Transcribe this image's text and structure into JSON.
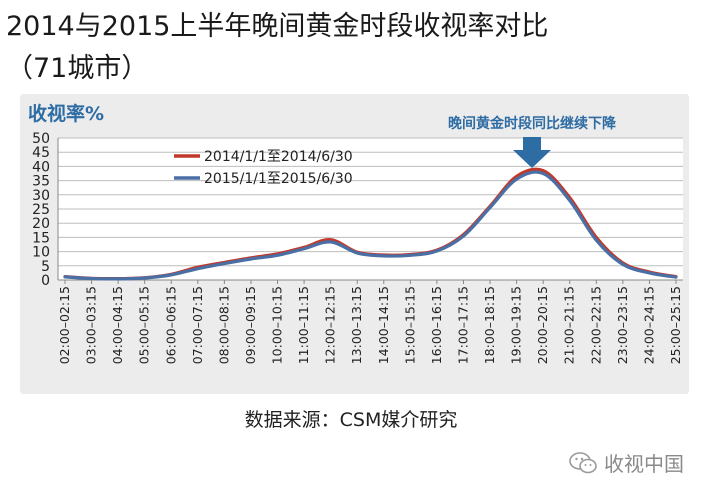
{
  "page": {
    "title_line1": "2014与2015上半年晚间黄金时段收视率对比",
    "title_line2": "（71城市）",
    "source": "数据来源：CSM媒介研究",
    "watermark": "收视中国",
    "watermark_icon": "wechat-icon"
  },
  "chart_data": {
    "type": "line",
    "ylabel": "收视率%",
    "ylim": [
      0,
      50
    ],
    "yticks": [
      0,
      5,
      10,
      15,
      20,
      25,
      30,
      35,
      40,
      45,
      50
    ],
    "grid": true,
    "legend_position": "top-left",
    "annotation": "晚间黄金时段同比继续下降",
    "x": [
      "02:00–02:15",
      "03:00–03:15",
      "04:00–04:15",
      "05:00–05:15",
      "06:00–06:15",
      "07:00–07:15",
      "08:00–08:15",
      "09:00–09:15",
      "10:00–10:15",
      "11:00–11:15",
      "12:00–12:15",
      "13:00–13:15",
      "14:00–14:15",
      "15:00–15:15",
      "16:00–16:15",
      "17:00–17:15",
      "18:00–18:15",
      "19:00–19:15",
      "20:00–20:15",
      "21:00–21:15",
      "22:00–22:15",
      "23:00–23:15",
      "24:00–24:15",
      "25:00–25:15"
    ],
    "series": [
      {
        "name": "2014/1/1至2014/6/30",
        "color": "#c0392b",
        "values": [
          1.2,
          0.6,
          0.5,
          0.8,
          2.0,
          4.5,
          6.2,
          7.8,
          9.2,
          11.5,
          14.2,
          9.8,
          8.8,
          9.0,
          10.5,
          16.0,
          26.0,
          36.5,
          38.5,
          29.0,
          15.0,
          6.0,
          2.8,
          1.2
        ]
      },
      {
        "name": "2015/1/1至2015/6/30",
        "color": "#4a6fa5",
        "values": [
          1.1,
          0.5,
          0.4,
          0.7,
          1.8,
          4.0,
          5.8,
          7.4,
          8.7,
          11.0,
          13.4,
          9.5,
          8.5,
          8.7,
          10.2,
          15.5,
          25.5,
          35.5,
          37.5,
          28.0,
          14.0,
          5.5,
          2.5,
          1.0
        ]
      }
    ]
  }
}
